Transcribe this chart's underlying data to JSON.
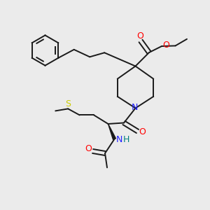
{
  "bg_color": "#ebebeb",
  "bond_color": "#1a1a1a",
  "colors": {
    "O": "#ff0000",
    "N": "#2020ff",
    "S": "#cccc00",
    "H": "#008080",
    "C": "#1a1a1a"
  },
  "figsize": [
    3.0,
    3.0
  ],
  "dpi": 100,
  "lw": 1.4,
  "fontsize": 8.5
}
